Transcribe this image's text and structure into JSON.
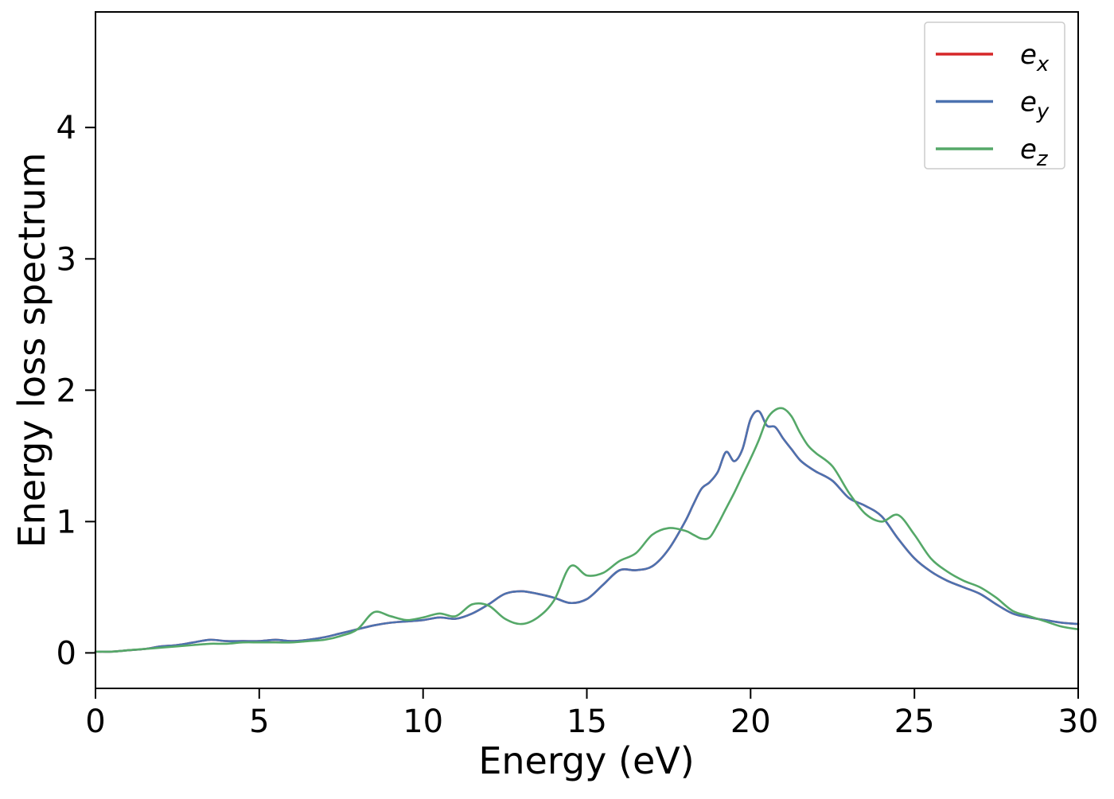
{
  "figure": {
    "background_color": "#ffffff",
    "axes_edge_color": "#000000"
  },
  "chart_data": {
    "type": "line",
    "title": "",
    "xlabel": "Energy (eV)",
    "ylabel": "Energy loss spectrum",
    "xlim": [
      0,
      30
    ],
    "ylim": [
      -0.27,
      4.88
    ],
    "xticks": [
      0,
      5,
      10,
      15,
      20,
      25,
      30
    ],
    "yticks": [
      0,
      1,
      2,
      3,
      4
    ],
    "grid": false,
    "legend_position": "upper right",
    "x": [
      0,
      0.5,
      1,
      1.5,
      2,
      2.5,
      3,
      3.5,
      4,
      4.5,
      5,
      5.5,
      6,
      6.5,
      7,
      7.5,
      8,
      8.5,
      9,
      9.5,
      10,
      10.5,
      11,
      11.5,
      12,
      12.5,
      13,
      13.5,
      14,
      14.5,
      15,
      15.5,
      16,
      16.5,
      17,
      17.5,
      18,
      18.25,
      18.5,
      18.75,
      19,
      19.25,
      19.5,
      19.75,
      20,
      20.25,
      20.5,
      20.75,
      21,
      21.25,
      21.5,
      21.75,
      22,
      22.5,
      23,
      23.5,
      24,
      24.5,
      25,
      25.5,
      26,
      26.5,
      27,
      27.5,
      28,
      28.5,
      29,
      29.5,
      30
    ],
    "series": [
      {
        "name": "e_x",
        "label_base": "e",
        "label_sub": "x",
        "color": "#d62728",
        "values": [
          0.01,
          0.01,
          0.02,
          0.03,
          0.05,
          0.06,
          0.08,
          0.1,
          0.09,
          0.09,
          0.09,
          0.1,
          0.09,
          0.1,
          0.12,
          0.15,
          0.18,
          0.21,
          0.23,
          0.24,
          0.25,
          0.27,
          0.26,
          0.3,
          0.37,
          0.45,
          0.47,
          0.45,
          0.42,
          0.38,
          0.41,
          0.52,
          0.63,
          0.63,
          0.66,
          0.79,
          1.0,
          1.13,
          1.25,
          1.3,
          1.38,
          1.53,
          1.46,
          1.55,
          1.78,
          1.84,
          1.73,
          1.72,
          1.63,
          1.55,
          1.47,
          1.42,
          1.38,
          1.31,
          1.18,
          1.12,
          1.04,
          0.87,
          0.72,
          0.62,
          0.55,
          0.5,
          0.45,
          0.37,
          0.3,
          0.27,
          0.25,
          0.23,
          0.22
        ]
      },
      {
        "name": "e_y",
        "label_base": "e",
        "label_sub": "y",
        "color": "#4c72b0",
        "values": [
          0.01,
          0.01,
          0.02,
          0.03,
          0.05,
          0.06,
          0.08,
          0.1,
          0.09,
          0.09,
          0.09,
          0.1,
          0.09,
          0.1,
          0.12,
          0.15,
          0.18,
          0.21,
          0.23,
          0.24,
          0.25,
          0.27,
          0.26,
          0.3,
          0.37,
          0.45,
          0.47,
          0.45,
          0.42,
          0.38,
          0.41,
          0.52,
          0.63,
          0.63,
          0.66,
          0.79,
          1.0,
          1.13,
          1.25,
          1.3,
          1.38,
          1.53,
          1.46,
          1.55,
          1.78,
          1.84,
          1.73,
          1.72,
          1.63,
          1.55,
          1.47,
          1.42,
          1.38,
          1.31,
          1.18,
          1.12,
          1.04,
          0.87,
          0.72,
          0.62,
          0.55,
          0.5,
          0.45,
          0.37,
          0.3,
          0.27,
          0.25,
          0.23,
          0.22
        ]
      },
      {
        "name": "e_z",
        "label_base": "e",
        "label_sub": "z",
        "color": "#55a868",
        "values": [
          0.01,
          0.01,
          0.02,
          0.03,
          0.04,
          0.05,
          0.06,
          0.07,
          0.07,
          0.08,
          0.08,
          0.08,
          0.08,
          0.09,
          0.1,
          0.13,
          0.18,
          0.31,
          0.28,
          0.25,
          0.27,
          0.3,
          0.28,
          0.37,
          0.36,
          0.26,
          0.22,
          0.27,
          0.4,
          0.66,
          0.59,
          0.61,
          0.7,
          0.76,
          0.9,
          0.95,
          0.93,
          0.9,
          0.87,
          0.88,
          0.98,
          1.1,
          1.22,
          1.35,
          1.48,
          1.62,
          1.78,
          1.85,
          1.86,
          1.8,
          1.68,
          1.58,
          1.52,
          1.42,
          1.22,
          1.06,
          1.0,
          1.05,
          0.9,
          0.72,
          0.62,
          0.55,
          0.5,
          0.42,
          0.32,
          0.28,
          0.24,
          0.2,
          0.18
        ]
      }
    ]
  }
}
